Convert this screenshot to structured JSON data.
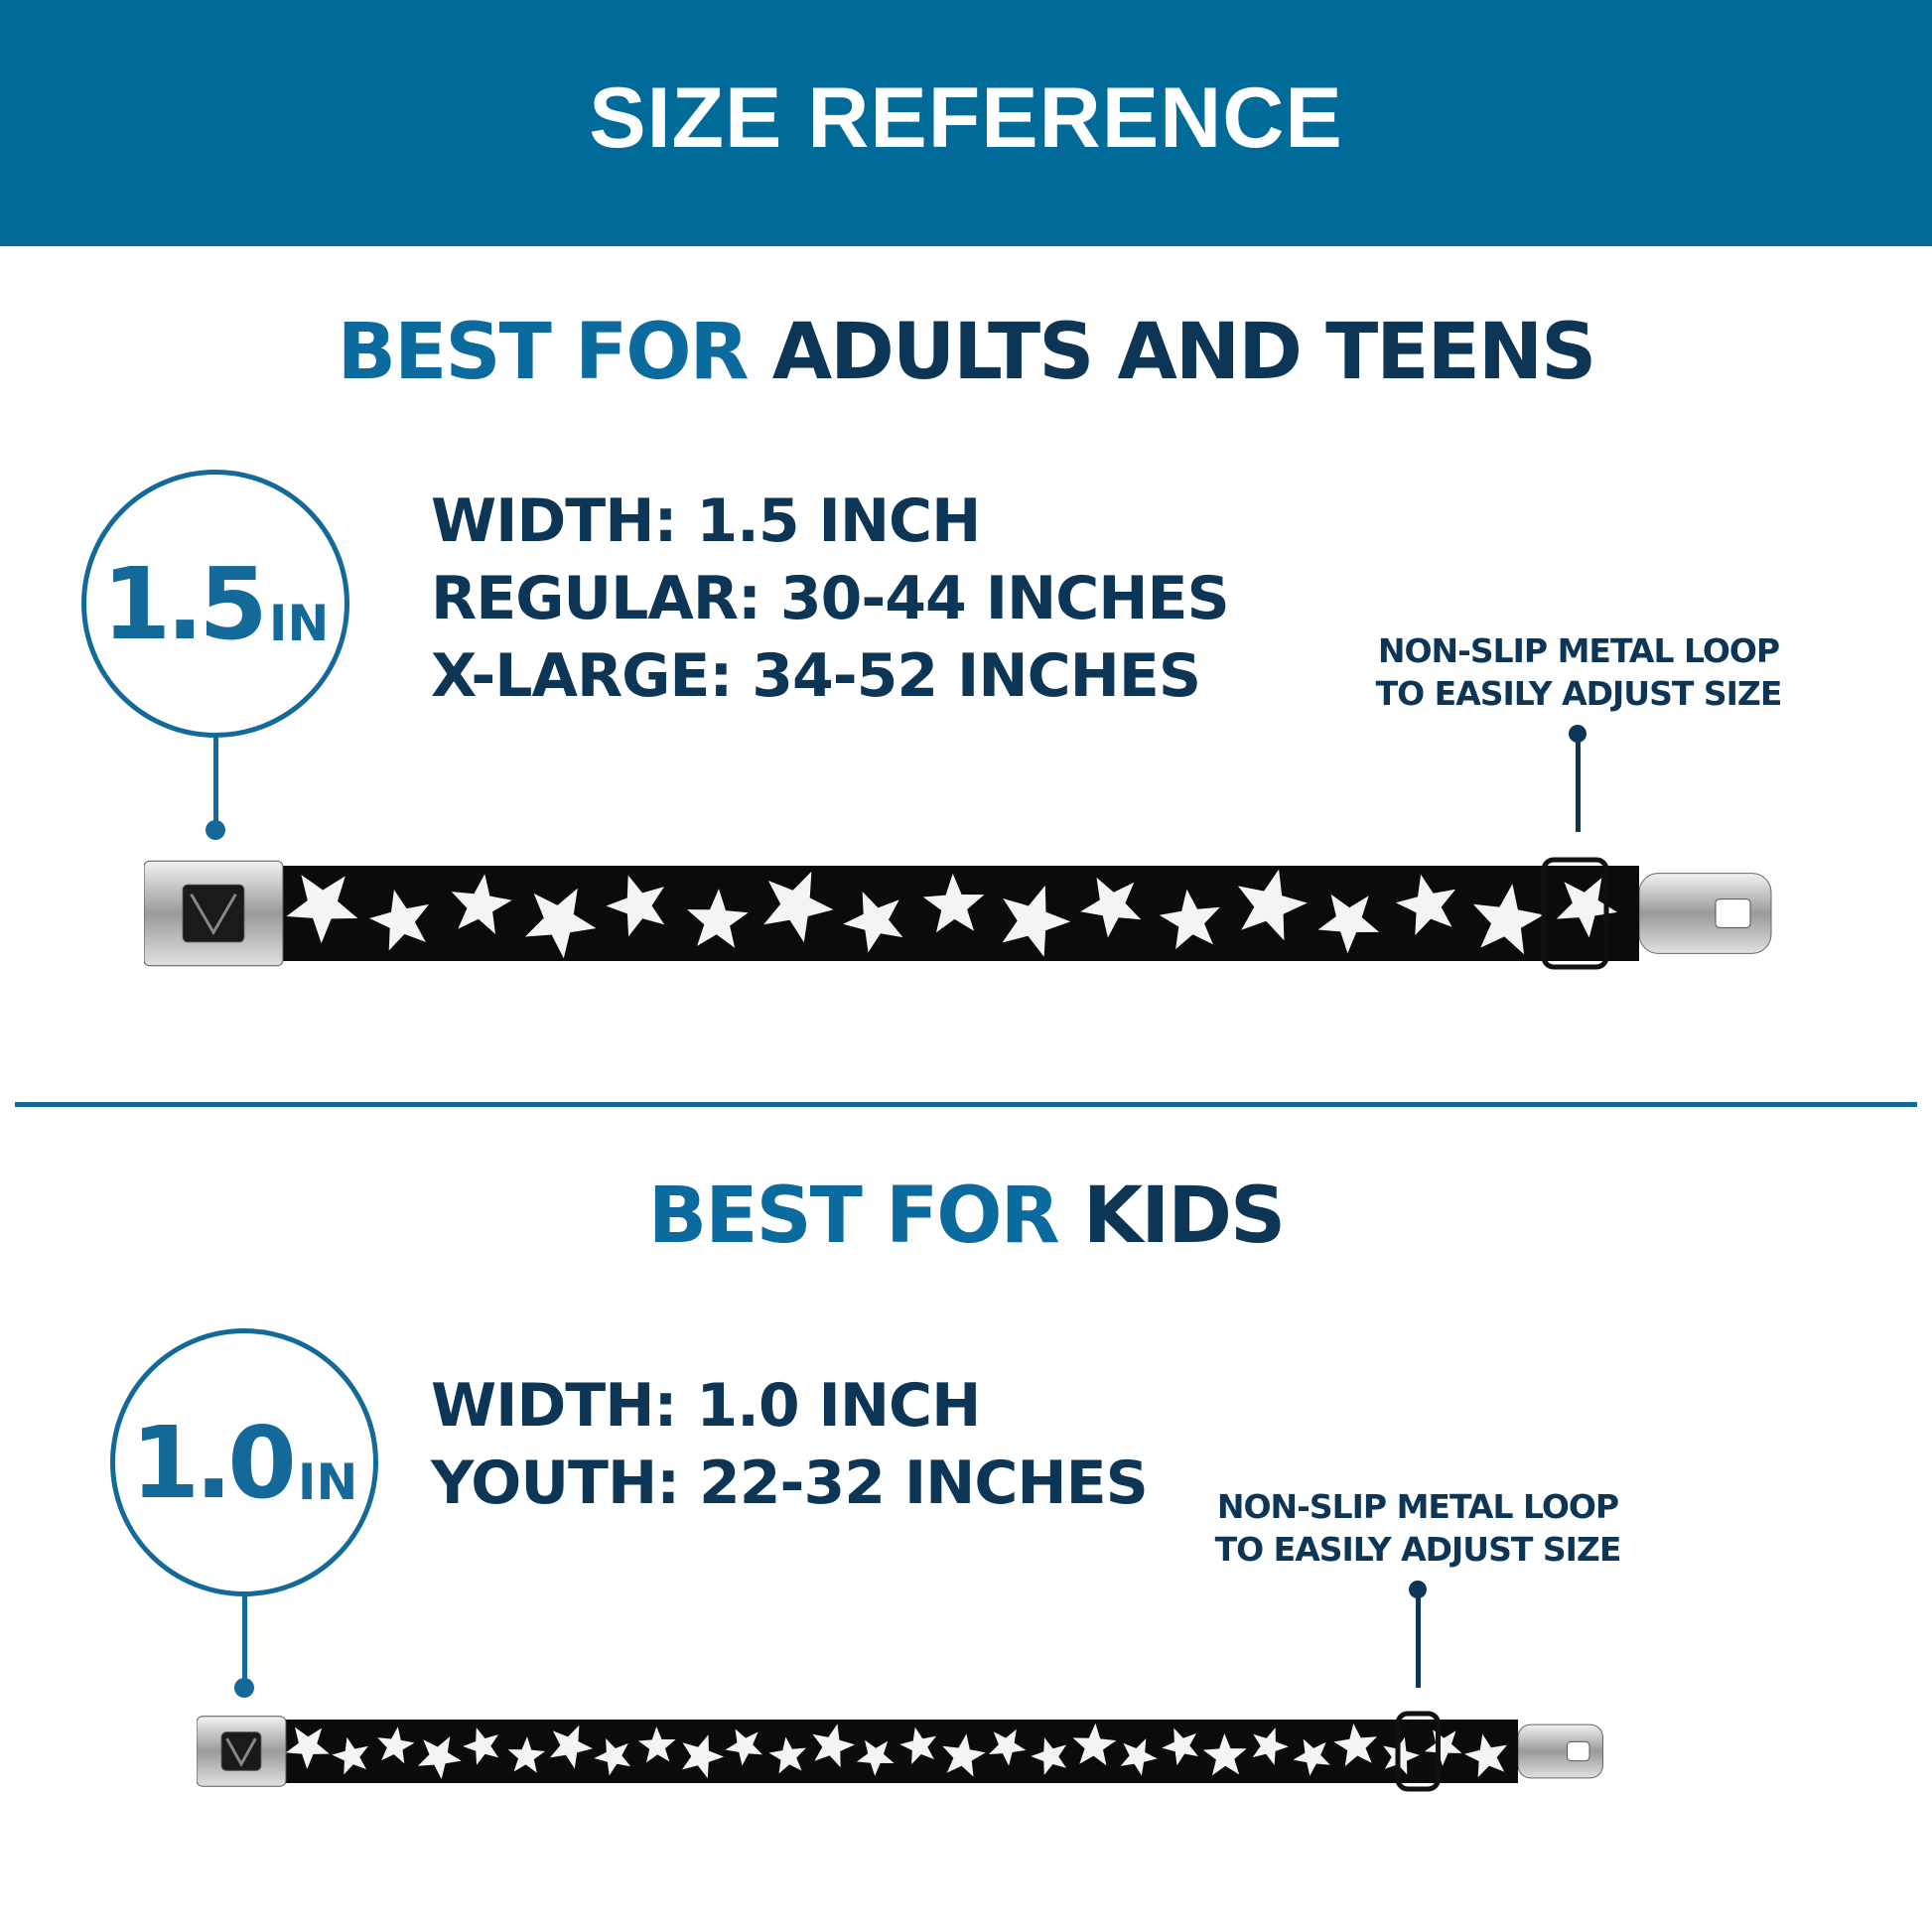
{
  "header": {
    "title": "SIZE REFERENCE",
    "color": "#006a99"
  },
  "adults": {
    "heading_accent": "BEST FOR",
    "heading_main": "ADULTS AND TEENS",
    "badge_value": "1.5",
    "badge_unit": "IN",
    "specs": [
      "WIDTH: 1.5 INCH",
      "REGULAR: 30-44 INCHES",
      "X-LARGE: 34-52 INCHES"
    ],
    "note": [
      "NON-SLIP METAL LOOP",
      "TO EASILY ADJUST SIZE"
    ]
  },
  "kids": {
    "heading_accent": "BEST FOR",
    "heading_main": "KIDS",
    "badge_value": "1.0",
    "badge_unit": "IN",
    "specs": [
      "WIDTH: 1.0 INCH",
      "YOUTH: 22-32 INCHES"
    ],
    "note": [
      "NON-SLIP METAL LOOP",
      "TO EASILY ADJUST SIZE"
    ]
  },
  "colors": {
    "accent_blue": "#0b6a9e",
    "navy": "#0d3556",
    "belt": "#0b0b0b",
    "stars": "#f4f4f4"
  },
  "belt_pattern": "white-stars-on-black"
}
